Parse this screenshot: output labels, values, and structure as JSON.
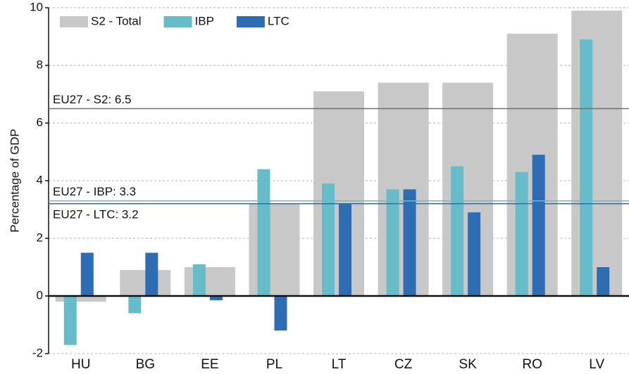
{
  "chart_data": {
    "type": "bar",
    "y_label": "Percentage of GDP",
    "categories": [
      "HU",
      "BG",
      "EE",
      "PL",
      "LT",
      "CZ",
      "SK",
      "RO",
      "LV"
    ],
    "series": [
      {
        "name": "S2 - Total",
        "color": "#c8c8c8",
        "values": [
          -0.2,
          0.9,
          1.0,
          3.2,
          7.1,
          7.4,
          7.4,
          9.1,
          9.9
        ]
      },
      {
        "name": "IBP",
        "color": "#66bcc8",
        "values": [
          -1.7,
          -0.6,
          1.1,
          4.4,
          3.9,
          3.7,
          4.5,
          4.3,
          8.9
        ]
      },
      {
        "name": "LTC",
        "color": "#2e6db4",
        "values": [
          1.5,
          1.5,
          -0.15,
          -1.2,
          3.2,
          3.7,
          2.9,
          4.9,
          1.0
        ]
      }
    ],
    "reference_lines": [
      {
        "label": "EU27 - S2: 6.5",
        "value": 6.5,
        "color": "#6e6e6e"
      },
      {
        "label": "EU27 - IBP: 3.3",
        "value": 3.3,
        "color": "#66bcc8"
      },
      {
        "label": "EU27 - LTC: 3.2",
        "value": 3.2,
        "color": "#2e6db4"
      }
    ],
    "ylim": [
      -2,
      10
    ],
    "yticks": [
      -2,
      0,
      2,
      4,
      6,
      8,
      10
    ],
    "grid": true,
    "legend": "top-left"
  }
}
